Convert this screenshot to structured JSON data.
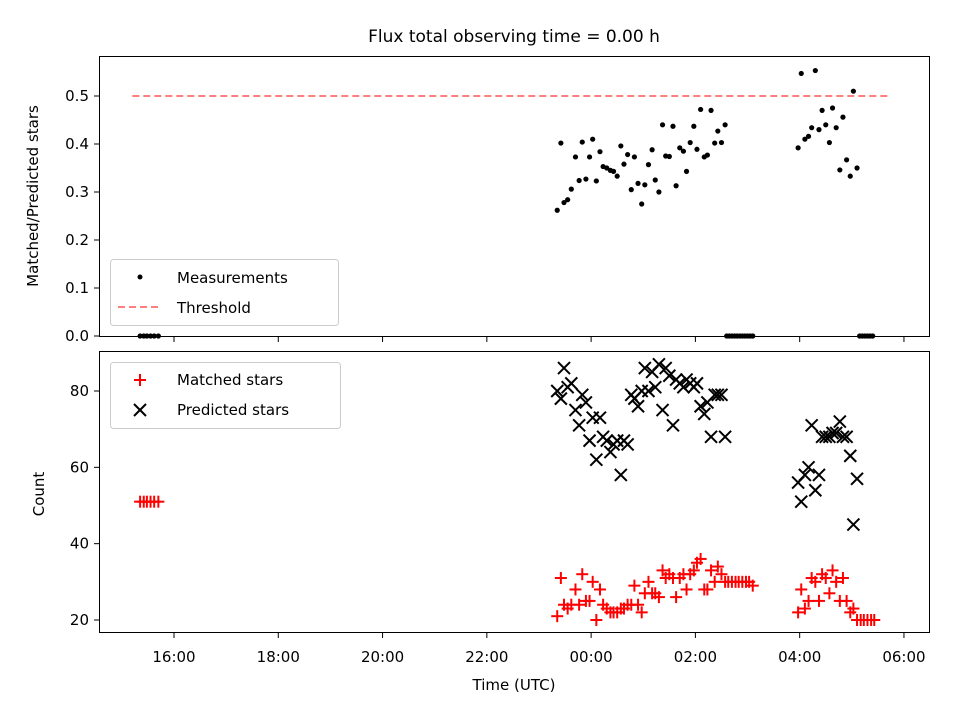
{
  "chart_data": [
    {
      "type": "scatter",
      "title": "Flux total observing time = 0.00 h",
      "ylabel": "Matched/Predicted stars",
      "xlabel": "",
      "ylim": [
        0,
        0.58
      ],
      "yticks": [
        "0.0",
        "0.1",
        "0.2",
        "0.3",
        "0.4",
        "0.5"
      ],
      "grid": false,
      "legend_position": "lower-left",
      "series": [
        {
          "name": "Measurements",
          "kind": "points",
          "color": "#000000",
          "points": [
            [
              15.35,
              0
            ],
            [
              15.42,
              0
            ],
            [
              15.48,
              0
            ],
            [
              15.55,
              0
            ],
            [
              15.62,
              0
            ],
            [
              15.7,
              0
            ],
            [
              23.35,
              0.262
            ],
            [
              23.42,
              0.402
            ],
            [
              23.48,
              0.278
            ],
            [
              23.55,
              0.284
            ],
            [
              23.62,
              0.306
            ],
            [
              23.7,
              0.373
            ],
            [
              23.77,
              0.324
            ],
            [
              23.83,
              0.404
            ],
            [
              23.9,
              0.327
            ],
            [
              23.97,
              0.373
            ],
            [
              24.03,
              0.41
            ],
            [
              24.1,
              0.323
            ],
            [
              24.17,
              0.384
            ],
            [
              24.23,
              0.353
            ],
            [
              24.3,
              0.35
            ],
            [
              24.37,
              0.345
            ],
            [
              24.43,
              0.343
            ],
            [
              24.5,
              0.333
            ],
            [
              24.57,
              0.396
            ],
            [
              24.63,
              0.358
            ],
            [
              24.7,
              0.378
            ],
            [
              24.77,
              0.305
            ],
            [
              24.83,
              0.373
            ],
            [
              24.9,
              0.318
            ],
            [
              24.97,
              0.275
            ],
            [
              25.03,
              0.315
            ],
            [
              25.1,
              0.357
            ],
            [
              25.17,
              0.388
            ],
            [
              25.23,
              0.325
            ],
            [
              25.3,
              0.3
            ],
            [
              25.37,
              0.44
            ],
            [
              25.43,
              0.375
            ],
            [
              25.5,
              0.374
            ],
            [
              25.57,
              0.437
            ],
            [
              25.63,
              0.313
            ],
            [
              25.7,
              0.392
            ],
            [
              25.77,
              0.385
            ],
            [
              25.83,
              0.343
            ],
            [
              25.9,
              0.403
            ],
            [
              25.97,
              0.437
            ],
            [
              26.03,
              0.389
            ],
            [
              26.1,
              0.472
            ],
            [
              26.17,
              0.373
            ],
            [
              26.23,
              0.377
            ],
            [
              26.3,
              0.47
            ],
            [
              26.37,
              0.402
            ],
            [
              26.43,
              0.427
            ],
            [
              26.5,
              0.403
            ],
            [
              26.57,
              0.44
            ],
            [
              27.97,
              0.392
            ],
            [
              28.03,
              0.547
            ],
            [
              28.1,
              0.41
            ],
            [
              28.17,
              0.416
            ],
            [
              28.23,
              0.434
            ],
            [
              28.3,
              0.553
            ],
            [
              28.37,
              0.43
            ],
            [
              28.43,
              0.47
            ],
            [
              28.5,
              0.44
            ],
            [
              28.57,
              0.403
            ],
            [
              28.63,
              0.475
            ],
            [
              28.7,
              0.434
            ],
            [
              28.77,
              0.346
            ],
            [
              28.83,
              0.456
            ],
            [
              28.9,
              0.367
            ],
            [
              28.97,
              0.333
            ],
            [
              29.03,
              0.51
            ],
            [
              29.1,
              0.35
            ],
            [
              26.6,
              0
            ],
            [
              26.65,
              0
            ],
            [
              26.7,
              0
            ],
            [
              26.75,
              0
            ],
            [
              26.8,
              0
            ],
            [
              26.85,
              0
            ],
            [
              26.9,
              0
            ],
            [
              26.95,
              0
            ],
            [
              27.0,
              0
            ],
            [
              27.05,
              0
            ],
            [
              27.1,
              0
            ],
            [
              29.15,
              0
            ],
            [
              29.2,
              0
            ],
            [
              29.25,
              0
            ],
            [
              29.3,
              0
            ],
            [
              29.35,
              0
            ],
            [
              29.4,
              0
            ]
          ]
        },
        {
          "name": "Threshold",
          "kind": "dashed-line",
          "color": "#ff7f7f",
          "x": [
            15.2,
            29.7
          ],
          "y": [
            0.5,
            0.5
          ]
        }
      ]
    },
    {
      "type": "scatter",
      "title": "",
      "ylabel": "Count",
      "xlabel": "Time (UTC)",
      "ylim": [
        16,
        90
      ],
      "yticks": [
        "20",
        "40",
        "60",
        "80"
      ],
      "xticks": [
        "16:00",
        "18:00",
        "20:00",
        "22:00",
        "00:00",
        "02:00",
        "04:00",
        "06:00"
      ],
      "grid": false,
      "legend_position": "upper-left",
      "series": [
        {
          "name": "Matched stars",
          "kind": "plus",
          "color": "#ff0000",
          "points": [
            [
              15.35,
              51
            ],
            [
              15.42,
              51
            ],
            [
              15.48,
              51
            ],
            [
              15.55,
              51
            ],
            [
              15.62,
              51
            ],
            [
              15.7,
              51
            ],
            [
              23.35,
              21
            ],
            [
              23.42,
              31
            ],
            [
              23.48,
              24
            ],
            [
              23.55,
              23
            ],
            [
              23.62,
              24
            ],
            [
              23.7,
              28
            ],
            [
              23.77,
              24
            ],
            [
              23.83,
              32
            ],
            [
              23.9,
              25
            ],
            [
              23.97,
              25
            ],
            [
              24.03,
              30
            ],
            [
              24.1,
              20
            ],
            [
              24.17,
              28
            ],
            [
              24.23,
              24
            ],
            [
              24.3,
              23
            ],
            [
              24.37,
              22
            ],
            [
              24.43,
              22
            ],
            [
              24.5,
              22
            ],
            [
              24.57,
              23
            ],
            [
              24.63,
              23
            ],
            [
              24.7,
              24
            ],
            [
              24.77,
              24
            ],
            [
              24.83,
              29
            ],
            [
              24.9,
              24
            ],
            [
              24.97,
              22
            ],
            [
              25.03,
              27
            ],
            [
              25.1,
              30
            ],
            [
              25.17,
              27
            ],
            [
              25.23,
              27
            ],
            [
              25.3,
              26
            ],
            [
              25.37,
              33
            ],
            [
              25.43,
              31
            ],
            [
              25.5,
              32
            ],
            [
              25.57,
              31
            ],
            [
              25.63,
              26
            ],
            [
              25.7,
              31
            ],
            [
              25.77,
              32
            ],
            [
              25.83,
              28
            ],
            [
              25.9,
              32
            ],
            [
              25.97,
              33
            ],
            [
              26.03,
              35
            ],
            [
              26.1,
              36
            ],
            [
              26.17,
              28
            ],
            [
              26.23,
              28
            ],
            [
              26.3,
              33
            ],
            [
              26.37,
              30
            ],
            [
              26.43,
              34
            ],
            [
              26.5,
              32
            ],
            [
              26.57,
              30
            ],
            [
              26.63,
              30
            ],
            [
              26.7,
              30
            ],
            [
              26.77,
              30
            ],
            [
              26.83,
              30
            ],
            [
              26.9,
              30
            ],
            [
              26.97,
              30
            ],
            [
              27.03,
              30
            ],
            [
              27.1,
              29
            ],
            [
              27.97,
              22
            ],
            [
              28.03,
              28
            ],
            [
              28.1,
              23
            ],
            [
              28.17,
              25
            ],
            [
              28.23,
              31
            ],
            [
              28.3,
              30
            ],
            [
              28.37,
              25
            ],
            [
              28.43,
              32
            ],
            [
              28.5,
              31
            ],
            [
              28.57,
              27
            ],
            [
              28.63,
              33
            ],
            [
              28.7,
              30
            ],
            [
              28.77,
              25
            ],
            [
              28.83,
              31
            ],
            [
              28.9,
              25
            ],
            [
              28.97,
              22
            ],
            [
              29.03,
              23
            ],
            [
              29.1,
              20
            ],
            [
              29.17,
              20
            ],
            [
              29.23,
              20
            ],
            [
              29.3,
              20
            ],
            [
              29.37,
              20
            ],
            [
              29.43,
              20
            ]
          ]
        },
        {
          "name": "Predicted stars",
          "kind": "cross",
          "color": "#000000",
          "points": [
            [
              23.35,
              80
            ],
            [
              23.42,
              78
            ],
            [
              23.48,
              86
            ],
            [
              23.55,
              81
            ],
            [
              23.62,
              82
            ],
            [
              23.7,
              75
            ],
            [
              23.77,
              71
            ],
            [
              23.83,
              79
            ],
            [
              23.9,
              77
            ],
            [
              23.97,
              67
            ],
            [
              24.03,
              73
            ],
            [
              24.1,
              62
            ],
            [
              24.17,
              73
            ],
            [
              24.23,
              68
            ],
            [
              24.3,
              67
            ],
            [
              24.37,
              64
            ],
            [
              24.43,
              66
            ],
            [
              24.5,
              67
            ],
            [
              24.57,
              58
            ],
            [
              24.63,
              67
            ],
            [
              24.7,
              66
            ],
            [
              24.77,
              79
            ],
            [
              24.83,
              78
            ],
            [
              24.9,
              76
            ],
            [
              24.97,
              80
            ],
            [
              25.03,
              86
            ],
            [
              25.1,
              80
            ],
            [
              25.17,
              85
            ],
            [
              25.23,
              81
            ],
            [
              25.3,
              87
            ],
            [
              25.37,
              75
            ],
            [
              25.43,
              86
            ],
            [
              25.5,
              84
            ],
            [
              25.57,
              71
            ],
            [
              25.63,
              83
            ],
            [
              25.7,
              82
            ],
            [
              25.77,
              81
            ],
            [
              25.83,
              83
            ],
            [
              25.9,
              82
            ],
            [
              25.97,
              81
            ],
            [
              26.03,
              82
            ],
            [
              26.1,
              76
            ],
            [
              26.17,
              74
            ],
            [
              26.23,
              77
            ],
            [
              26.3,
              68
            ],
            [
              26.37,
              79
            ],
            [
              26.43,
              79
            ],
            [
              26.5,
              79
            ],
            [
              26.57,
              68
            ],
            [
              27.97,
              56
            ],
            [
              28.03,
              51
            ],
            [
              28.1,
              58
            ],
            [
              28.17,
              60
            ],
            [
              28.23,
              71
            ],
            [
              28.3,
              54
            ],
            [
              28.37,
              58
            ],
            [
              28.43,
              68
            ],
            [
              28.5,
              68
            ],
            [
              28.57,
              68
            ],
            [
              28.63,
              69
            ],
            [
              28.7,
              69
            ],
            [
              28.77,
              72
            ],
            [
              28.83,
              68
            ],
            [
              28.9,
              68
            ],
            [
              28.97,
              63
            ],
            [
              29.03,
              45
            ],
            [
              29.1,
              57
            ]
          ]
        }
      ]
    }
  ]
}
